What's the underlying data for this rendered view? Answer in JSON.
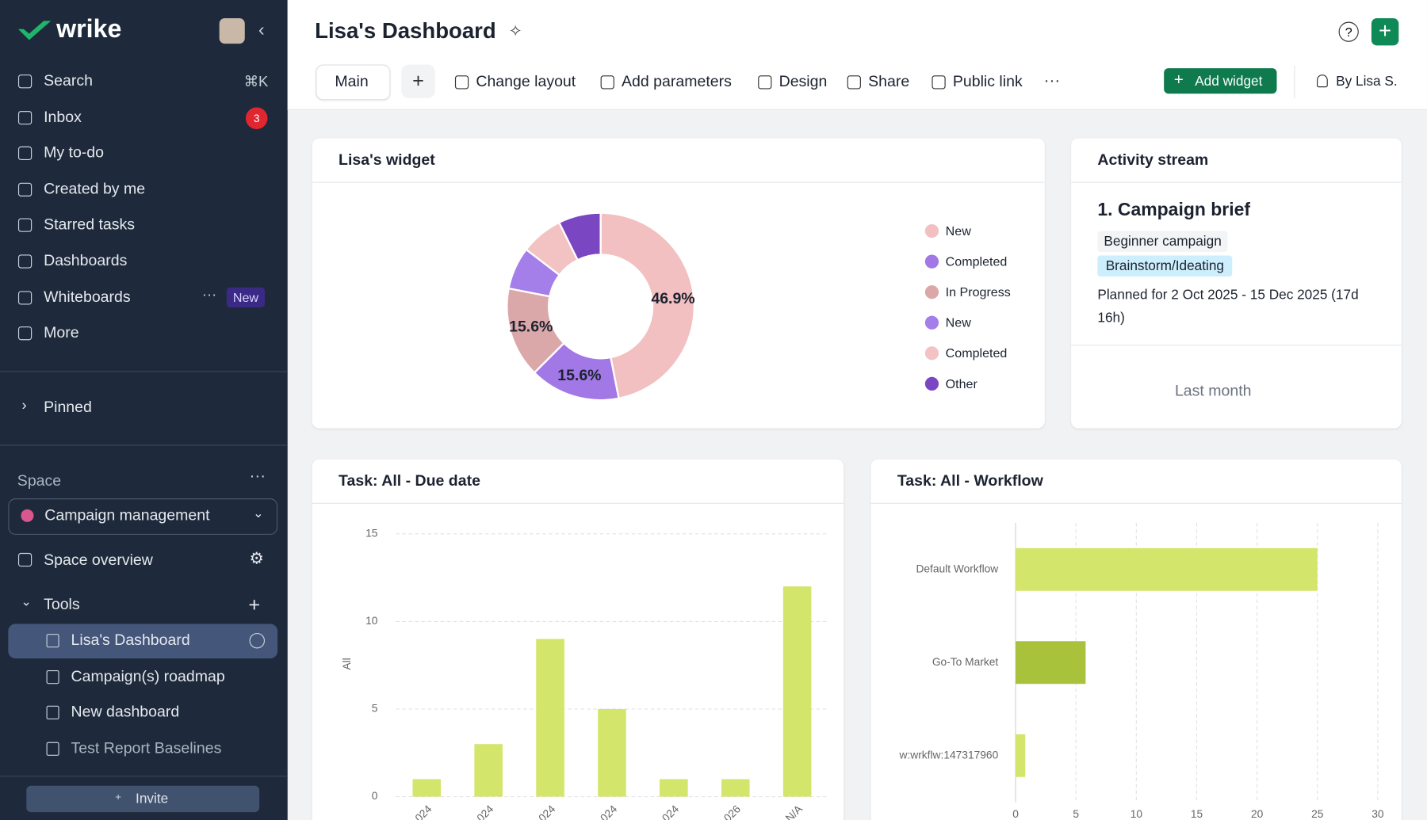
{
  "sidebar": {
    "logo": "wrike",
    "nav": [
      {
        "label": "Search",
        "shortcut": "⌘K"
      },
      {
        "label": "Inbox",
        "badge": 3
      },
      {
        "label": "My to-do"
      },
      {
        "label": "Created by me"
      },
      {
        "label": "Starred tasks"
      },
      {
        "label": "Dashboards"
      },
      {
        "label": "Whiteboards",
        "tag": "New"
      },
      {
        "label": "More"
      }
    ],
    "pinned": "Pinned",
    "space_label": "Space",
    "space": "Campaign management",
    "space_overview": "Space overview",
    "tools": "Tools",
    "tool_items": [
      "Lisa's Dashboard",
      "Campaign(s) roadmap",
      "New dashboard",
      "Test Report Baselines"
    ],
    "invite": "Invite"
  },
  "header": {
    "title": "Lisa's Dashboard",
    "tab": "Main",
    "actions": [
      "Change layout",
      "Add parameters",
      "Design",
      "Share",
      "Public link"
    ],
    "add_widget": "Add widget",
    "owner": "By Lisa S."
  },
  "widgets": [
    {
      "title": "Lisa's widget",
      "chart": {
        "type": "donut",
        "categories": [
          "New",
          "Completed",
          "In Progress",
          "New",
          "Completed",
          "Other"
        ],
        "values": [
          46.9,
          15.6,
          15.6,
          7.3,
          7.3,
          7.3
        ],
        "value_labels": [
          "46.9%",
          "15.6%",
          "15.6%",
          null,
          null,
          null
        ],
        "colors": [
          "#f2c0c1",
          "#a277e6",
          "#dba8aa",
          "#a47ee9",
          "#f3c2c3",
          "#7b46c2"
        ]
      }
    },
    {
      "title": "Activity stream",
      "item_title": "1. Campaign brief",
      "tags": [
        "Beginner campaign",
        "Brainstorm/Ideating"
      ],
      "planned": "Planned for 2 Oct 2025 - 15 Dec 2025 (17d 16h)",
      "period": "Last month"
    },
    {
      "title": "Task: All - Due date",
      "chart": {
        "type": "bar",
        "y_label": "All",
        "categories": [
          "024",
          "024",
          "024",
          "024",
          "024",
          "026",
          "N/A"
        ],
        "values": [
          1,
          3,
          9,
          5,
          1,
          1,
          12
        ],
        "color": "#d4e56b",
        "ylim": [
          0,
          15
        ],
        "yticks": [
          0,
          5,
          10,
          15
        ],
        "grid": true
      }
    },
    {
      "title": "Task: All - Workflow",
      "chart": {
        "type": "barh",
        "categories": [
          "Default Workflow",
          "Go-To Market",
          "w:wrkflw:147317960"
        ],
        "values": [
          25,
          5.8,
          0.8
        ],
        "colors": [
          "#d4e56b",
          "#a8c23b",
          "#d4e56b"
        ],
        "xlim": [
          0,
          30
        ],
        "xticks": [
          0,
          5,
          10,
          15,
          20,
          25,
          30
        ],
        "grid": true
      }
    }
  ]
}
